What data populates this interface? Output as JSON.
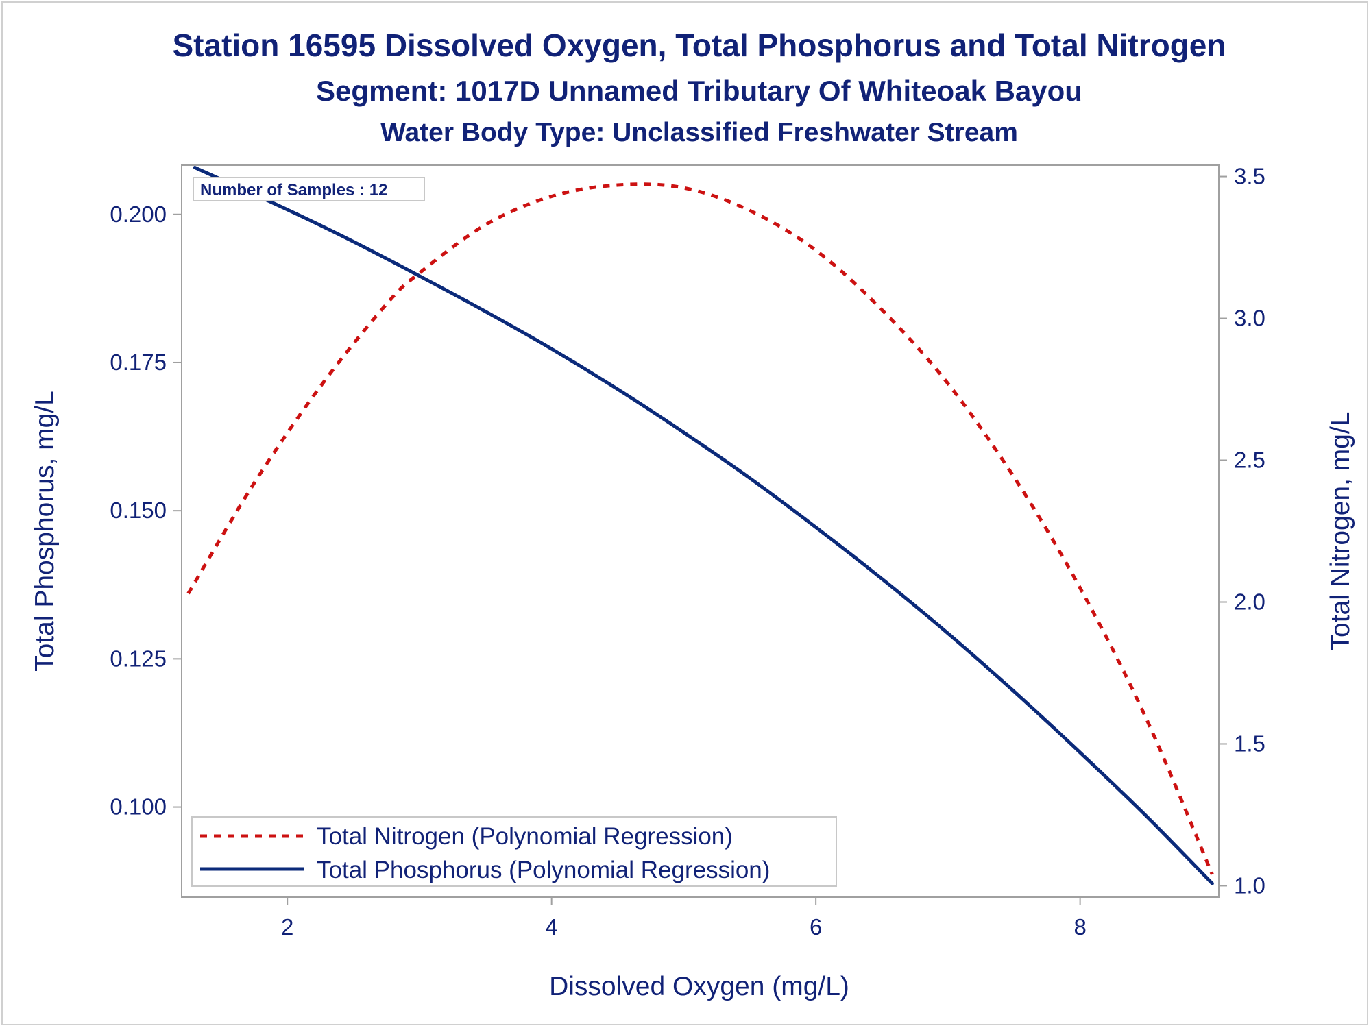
{
  "titles": {
    "line1": "Station 16595  Dissolved Oxygen, Total Phosphorus and Total Nitrogen",
    "line2": "Segment: 1017D  Unnamed Tributary Of Whiteoak Bayou",
    "line3": "Water Body Type: Unclassified Freshwater Stream"
  },
  "inset": {
    "text": "Number of Samples : 12"
  },
  "colors": {
    "text": "#112277",
    "phosphorus": "#0b2a7a",
    "nitrogen": "#cc1111",
    "axis": "#a0a0a0"
  },
  "chart_data": {
    "type": "line",
    "xlabel": "Dissolved Oxygen (mg/L)",
    "ylabel": "Total Phosphorus, mg/L",
    "y2label": "Total Nitrogen, mg/L",
    "xlim": [
      1.2,
      9.05
    ],
    "ylim": [
      0.0848,
      0.2083
    ],
    "y2lim": [
      0.96,
      3.54
    ],
    "xticks": [
      "2",
      "4",
      "6",
      "8"
    ],
    "yticks": [
      "0.100",
      "0.125",
      "0.150",
      "0.175",
      "0.200"
    ],
    "y2ticks": [
      "1.0",
      "1.5",
      "2.0",
      "2.5",
      "3.0",
      "3.5"
    ],
    "grid": false,
    "legend_position": "bottom-left",
    "series": [
      {
        "name": "Total Nitrogen (Polynomial Regression)",
        "axis": "y2",
        "style": "dashed",
        "x": [
          1.25,
          1.75,
          2.25,
          2.75,
          3.0,
          3.5,
          4.0,
          4.5,
          5.0,
          5.5,
          6.0,
          6.5,
          7.0,
          7.5,
          8.0,
          8.5,
          9.0
        ],
        "y": [
          2.03,
          2.42,
          2.76,
          3.05,
          3.16,
          3.33,
          3.43,
          3.47,
          3.46,
          3.38,
          3.24,
          3.03,
          2.77,
          2.44,
          2.05,
          1.59,
          1.04
        ]
      },
      {
        "name": "Total Phosphorus (Polynomial Regression)",
        "axis": "y",
        "style": "solid",
        "x": [
          1.3,
          2.0,
          2.5,
          3.0,
          3.5,
          4.0,
          4.5,
          5.0,
          5.5,
          6.0,
          6.5,
          7.0,
          7.5,
          8.0,
          8.5,
          9.0
        ],
        "y": [
          0.2079,
          0.2008,
          0.1954,
          0.1896,
          0.1836,
          0.1773,
          0.1705,
          0.1632,
          0.1555,
          0.1472,
          0.1385,
          0.1293,
          0.1195,
          0.1092,
          0.0985,
          0.0871
        ]
      }
    ]
  }
}
